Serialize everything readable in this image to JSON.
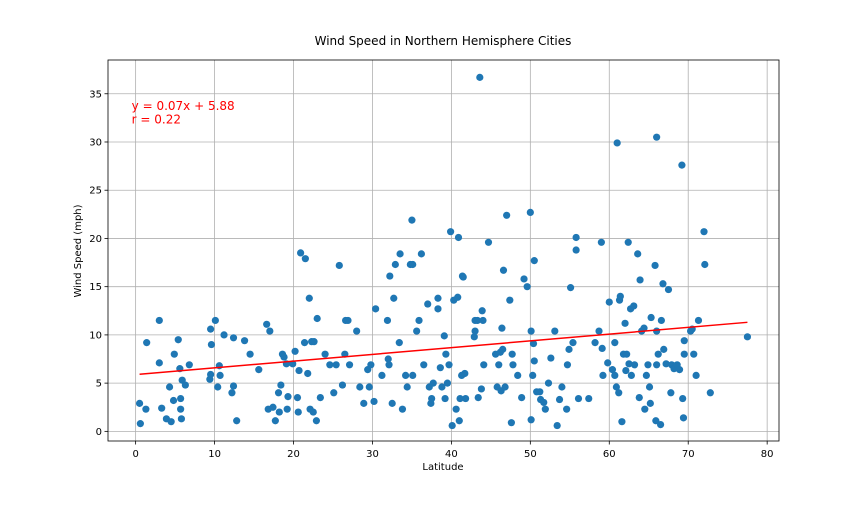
{
  "chart_data": {
    "type": "scatter",
    "title": "Wind Speed in Northern Hemisphere Cities",
    "xlabel": "Latitude",
    "ylabel": "Wind Speed (mph)",
    "xlim": [
      -3.5,
      81.5
    ],
    "ylim": [
      -1.0,
      38.5
    ],
    "xticks": [
      0,
      10,
      20,
      30,
      40,
      50,
      60,
      70,
      80
    ],
    "yticks": [
      0,
      5,
      10,
      15,
      20,
      25,
      30,
      35
    ],
    "grid": true,
    "legend": "none",
    "colors": {
      "points": "#1f77b4",
      "regression": "#ff0000",
      "annotation": "#ff0000",
      "grid": "#b0b0b0"
    },
    "regression": {
      "slope": 0.07,
      "intercept": 5.88,
      "x_range": [
        0.5,
        77.5
      ]
    },
    "annotations": [
      {
        "text": "y = 0.07x + 5.88",
        "x": -0.5,
        "y": 33.3
      },
      {
        "text": "r = 0.22",
        "x": -0.5,
        "y": 31.9
      }
    ],
    "series": [
      {
        "points": [
          [
            0.5,
            2.9
          ],
          [
            0.6,
            0.8
          ],
          [
            1.3,
            2.3
          ],
          [
            1.4,
            9.2
          ],
          [
            3.0,
            11.5
          ],
          [
            3.0,
            7.1
          ],
          [
            3.3,
            2.4
          ],
          [
            3.9,
            1.3
          ],
          [
            4.3,
            4.6
          ],
          [
            4.5,
            1.0
          ],
          [
            4.8,
            3.2
          ],
          [
            4.9,
            8.0
          ],
          [
            5.4,
            9.5
          ],
          [
            5.6,
            6.5
          ],
          [
            5.7,
            3.4
          ],
          [
            5.7,
            2.3
          ],
          [
            5.8,
            1.3
          ],
          [
            5.9,
            5.3
          ],
          [
            6.3,
            4.8
          ],
          [
            6.8,
            6.9
          ],
          [
            9.4,
            5.4
          ],
          [
            9.5,
            5.9
          ],
          [
            9.5,
            10.6
          ],
          [
            9.6,
            9.0
          ],
          [
            10.1,
            11.5
          ],
          [
            10.4,
            4.6
          ],
          [
            10.6,
            6.8
          ],
          [
            10.7,
            5.8
          ],
          [
            11.2,
            10.0
          ],
          [
            12.2,
            4.0
          ],
          [
            12.4,
            4.7
          ],
          [
            12.4,
            9.7
          ],
          [
            12.8,
            1.1
          ],
          [
            13.8,
            9.4
          ],
          [
            14.5,
            8.0
          ],
          [
            15.6,
            6.4
          ],
          [
            16.6,
            11.1
          ],
          [
            16.8,
            2.3
          ],
          [
            17.0,
            10.4
          ],
          [
            17.4,
            2.5
          ],
          [
            17.7,
            1.1
          ],
          [
            18.1,
            4.0
          ],
          [
            18.2,
            2.0
          ],
          [
            18.4,
            4.8
          ],
          [
            18.6,
            8.0
          ],
          [
            18.8,
            7.7
          ],
          [
            19.1,
            7.0
          ],
          [
            19.2,
            2.3
          ],
          [
            19.3,
            3.6
          ],
          [
            19.9,
            7.0
          ],
          [
            20.2,
            8.3
          ],
          [
            20.5,
            3.5
          ],
          [
            20.6,
            2.0
          ],
          [
            20.7,
            6.3
          ],
          [
            20.9,
            18.5
          ],
          [
            21.4,
            9.2
          ],
          [
            21.5,
            17.9
          ],
          [
            21.8,
            6.0
          ],
          [
            22.0,
            13.8
          ],
          [
            22.1,
            2.3
          ],
          [
            22.3,
            9.3
          ],
          [
            22.5,
            2.0
          ],
          [
            22.6,
            9.3
          ],
          [
            22.9,
            1.1
          ],
          [
            23.0,
            11.7
          ],
          [
            23.4,
            3.5
          ],
          [
            24.0,
            8.0
          ],
          [
            24.6,
            6.9
          ],
          [
            25.1,
            4.0
          ],
          [
            25.4,
            6.9
          ],
          [
            25.8,
            17.2
          ],
          [
            26.2,
            4.8
          ],
          [
            26.5,
            8.0
          ],
          [
            26.6,
            11.5
          ],
          [
            26.9,
            11.5
          ],
          [
            27.1,
            6.9
          ],
          [
            28.0,
            10.4
          ],
          [
            28.4,
            4.6
          ],
          [
            28.9,
            2.9
          ],
          [
            29.4,
            6.4
          ],
          [
            29.6,
            4.6
          ],
          [
            29.8,
            6.9
          ],
          [
            30.2,
            3.1
          ],
          [
            30.4,
            12.7
          ],
          [
            31.2,
            5.8
          ],
          [
            31.9,
            11.5
          ],
          [
            32.0,
            7.5
          ],
          [
            32.1,
            6.9
          ],
          [
            32.2,
            16.1
          ],
          [
            32.5,
            2.9
          ],
          [
            32.7,
            13.8
          ],
          [
            32.9,
            17.3
          ],
          [
            33.4,
            9.2
          ],
          [
            33.5,
            18.4
          ],
          [
            33.8,
            2.3
          ],
          [
            34.2,
            5.8
          ],
          [
            34.4,
            4.6
          ],
          [
            34.8,
            17.3
          ],
          [
            35.0,
            21.9
          ],
          [
            35.1,
            17.3
          ],
          [
            35.1,
            5.8
          ],
          [
            35.6,
            10.4
          ],
          [
            35.9,
            11.5
          ],
          [
            36.2,
            18.4
          ],
          [
            36.5,
            6.9
          ],
          [
            37.0,
            13.2
          ],
          [
            37.2,
            4.6
          ],
          [
            37.4,
            2.9
          ],
          [
            37.5,
            3.4
          ],
          [
            37.7,
            5.0
          ],
          [
            38.3,
            12.7
          ],
          [
            38.3,
            13.8
          ],
          [
            38.6,
            6.6
          ],
          [
            38.8,
            4.6
          ],
          [
            39.1,
            9.9
          ],
          [
            39.2,
            3.4
          ],
          [
            39.3,
            8.0
          ],
          [
            39.5,
            5.0
          ],
          [
            39.7,
            6.9
          ],
          [
            39.9,
            20.7
          ],
          [
            40.1,
            0.6
          ],
          [
            40.3,
            13.6
          ],
          [
            40.6,
            2.3
          ],
          [
            40.8,
            13.9
          ],
          [
            40.9,
            20.1
          ],
          [
            41.0,
            1.1
          ],
          [
            41.1,
            3.4
          ],
          [
            41.3,
            5.8
          ],
          [
            41.4,
            16.1
          ],
          [
            41.5,
            16.0
          ],
          [
            41.7,
            6.0
          ],
          [
            41.8,
            3.4
          ],
          [
            42.9,
            9.8
          ],
          [
            43.0,
            11.5
          ],
          [
            43.0,
            10.4
          ],
          [
            43.3,
            11.5
          ],
          [
            43.4,
            3.5
          ],
          [
            43.6,
            36.7
          ],
          [
            43.8,
            4.4
          ],
          [
            43.9,
            12.5
          ],
          [
            44.0,
            11.5
          ],
          [
            44.1,
            6.9
          ],
          [
            44.7,
            19.6
          ],
          [
            45.6,
            8.0
          ],
          [
            45.8,
            4.6
          ],
          [
            46.0,
            6.9
          ],
          [
            46.2,
            8.2
          ],
          [
            46.3,
            4.2
          ],
          [
            46.4,
            10.7
          ],
          [
            46.5,
            8.5
          ],
          [
            46.6,
            16.7
          ],
          [
            46.8,
            4.6
          ],
          [
            47.0,
            22.4
          ],
          [
            47.4,
            13.6
          ],
          [
            47.6,
            0.9
          ],
          [
            47.7,
            8.0
          ],
          [
            47.8,
            6.9
          ],
          [
            48.4,
            5.8
          ],
          [
            48.9,
            3.5
          ],
          [
            49.2,
            15.8
          ],
          [
            49.6,
            15.0
          ],
          [
            50.0,
            22.7
          ],
          [
            50.1,
            10.4
          ],
          [
            50.1,
            1.2
          ],
          [
            50.3,
            5.8
          ],
          [
            50.4,
            9.1
          ],
          [
            50.5,
            17.7
          ],
          [
            50.5,
            7.3
          ],
          [
            50.8,
            4.1
          ],
          [
            51.2,
            4.1
          ],
          [
            51.3,
            3.3
          ],
          [
            51.7,
            3.0
          ],
          [
            51.9,
            2.3
          ],
          [
            52.3,
            5.0
          ],
          [
            52.6,
            7.6
          ],
          [
            53.1,
            10.4
          ],
          [
            53.4,
            0.6
          ],
          [
            53.7,
            3.3
          ],
          [
            54.0,
            4.6
          ],
          [
            54.6,
            2.3
          ],
          [
            54.7,
            6.9
          ],
          [
            54.9,
            8.5
          ],
          [
            55.1,
            14.9
          ],
          [
            55.4,
            9.2
          ],
          [
            55.8,
            18.8
          ],
          [
            55.8,
            20.1
          ],
          [
            56.1,
            3.4
          ],
          [
            57.4,
            3.4
          ],
          [
            58.2,
            9.2
          ],
          [
            58.7,
            10.4
          ],
          [
            59.0,
            19.6
          ],
          [
            59.1,
            8.6
          ],
          [
            59.2,
            5.8
          ],
          [
            59.8,
            7.1
          ],
          [
            60.0,
            13.4
          ],
          [
            60.4,
            6.4
          ],
          [
            60.7,
            9.2
          ],
          [
            60.7,
            5.8
          ],
          [
            60.9,
            4.6
          ],
          [
            61.0,
            29.9
          ],
          [
            61.2,
            4.0
          ],
          [
            61.3,
            13.6
          ],
          [
            61.4,
            14.0
          ],
          [
            61.6,
            1.0
          ],
          [
            61.8,
            8.0
          ],
          [
            62.0,
            11.2
          ],
          [
            62.1,
            6.3
          ],
          [
            62.2,
            8.0
          ],
          [
            62.4,
            19.6
          ],
          [
            62.5,
            7.0
          ],
          [
            62.7,
            12.7
          ],
          [
            62.8,
            5.8
          ],
          [
            63.1,
            13.0
          ],
          [
            63.2,
            6.9
          ],
          [
            63.6,
            18.4
          ],
          [
            63.8,
            3.5
          ],
          [
            63.9,
            15.7
          ],
          [
            64.1,
            10.4
          ],
          [
            64.4,
            10.7
          ],
          [
            64.5,
            2.3
          ],
          [
            64.7,
            5.8
          ],
          [
            64.9,
            6.9
          ],
          [
            65.1,
            4.6
          ],
          [
            65.2,
            2.9
          ],
          [
            65.3,
            11.8
          ],
          [
            65.8,
            17.2
          ],
          [
            65.9,
            1.1
          ],
          [
            66.0,
            6.9
          ],
          [
            66.0,
            30.5
          ],
          [
            66.0,
            10.4
          ],
          [
            66.2,
            8.0
          ],
          [
            66.5,
            0.7
          ],
          [
            66.6,
            11.5
          ],
          [
            66.8,
            15.3
          ],
          [
            66.9,
            8.5
          ],
          [
            67.2,
            7.0
          ],
          [
            67.5,
            14.7
          ],
          [
            67.8,
            4.0
          ],
          [
            67.9,
            6.9
          ],
          [
            68.2,
            6.5
          ],
          [
            68.6,
            6.9
          ],
          [
            68.9,
            6.4
          ],
          [
            69.2,
            27.6
          ],
          [
            69.3,
            3.4
          ],
          [
            69.4,
            1.4
          ],
          [
            69.5,
            9.4
          ],
          [
            69.5,
            8.0
          ],
          [
            70.3,
            10.4
          ],
          [
            70.5,
            10.6
          ],
          [
            70.7,
            8.0
          ],
          [
            71.0,
            5.8
          ],
          [
            71.3,
            11.5
          ],
          [
            72.0,
            20.7
          ],
          [
            72.1,
            17.3
          ],
          [
            72.8,
            4.0
          ],
          [
            77.5,
            9.8
          ]
        ]
      }
    ]
  }
}
